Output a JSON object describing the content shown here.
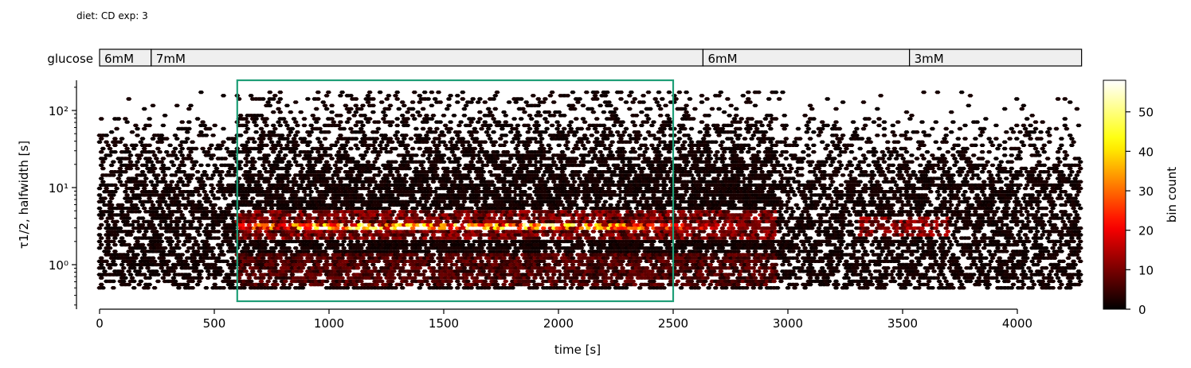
{
  "header": {
    "text": "diet: CD  exp: 3"
  },
  "glucose_bar": {
    "label": "glucose",
    "segments": [
      {
        "label": "6mM",
        "start": 0,
        "end": 225
      },
      {
        "label": "7mM",
        "start": 225,
        "end": 2630
      },
      {
        "label": "6mM",
        "start": 2630,
        "end": 3530
      },
      {
        "label": "3mM",
        "start": 3530,
        "end": 4280
      }
    ]
  },
  "highlight_window": {
    "x_start": 600,
    "x_end": 2500,
    "color": "#1f9e77"
  },
  "colors": {
    "cmap": [
      "#000000",
      "#e60000",
      "#ffff00",
      "#ffffff"
    ]
  },
  "chart_data": {
    "type": "heatmap",
    "variant": "hexbin",
    "xlabel": "time [s]",
    "ylabel": "τ1/2, halfwidth [s]",
    "x_ticks": [
      0,
      500,
      1000,
      1500,
      2000,
      2500,
      3000,
      3500,
      4000
    ],
    "y_scale": "log",
    "y_ticks": [
      1,
      10,
      100
    ],
    "y_tick_labels": [
      "10⁰",
      "10¹",
      "10²"
    ],
    "xlim": [
      -10,
      4280
    ],
    "ylim": [
      0.25,
      250
    ],
    "colorbar": {
      "label": "bin count",
      "range": [
        0,
        58
      ],
      "ticks": [
        0,
        10,
        20,
        30,
        40,
        50
      ]
    },
    "dense_band": {
      "y_center": 3.2,
      "x_range": [
        600,
        2950
      ],
      "peak_count": 57
    },
    "data_extent": {
      "x": [
        0,
        4280
      ],
      "y": [
        0.5,
        180
      ]
    }
  }
}
